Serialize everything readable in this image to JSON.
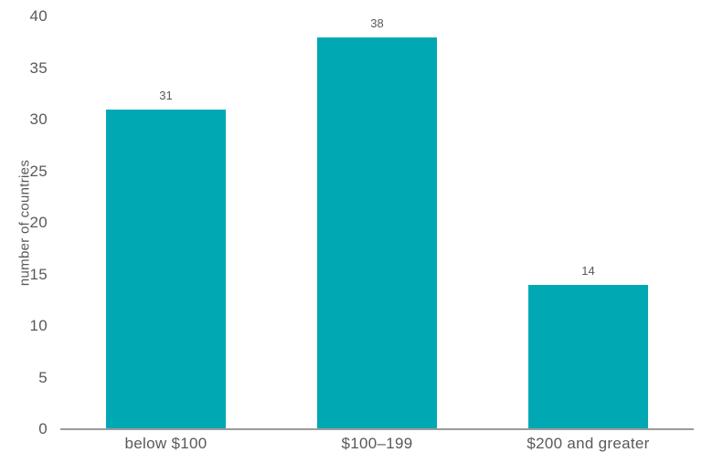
{
  "colors": {
    "bar": "#00a8b4",
    "text": "#58595b",
    "axis_line": "#9b9b9b",
    "background": "#ffffff"
  },
  "chart_data": {
    "type": "bar",
    "title": "",
    "xlabel": "",
    "ylabel": "number of countries",
    "categories": [
      "below $100",
      "$100–199",
      "$200 and greater"
    ],
    "values": [
      31,
      38,
      14
    ],
    "value_labels": [
      "31",
      "38",
      "14"
    ],
    "ylim": [
      0,
      40
    ],
    "yticks": [
      0,
      5,
      10,
      15,
      20,
      25,
      30,
      35,
      40
    ],
    "grid": false,
    "legend_position": "none",
    "bar_color": "#00a8b4"
  }
}
